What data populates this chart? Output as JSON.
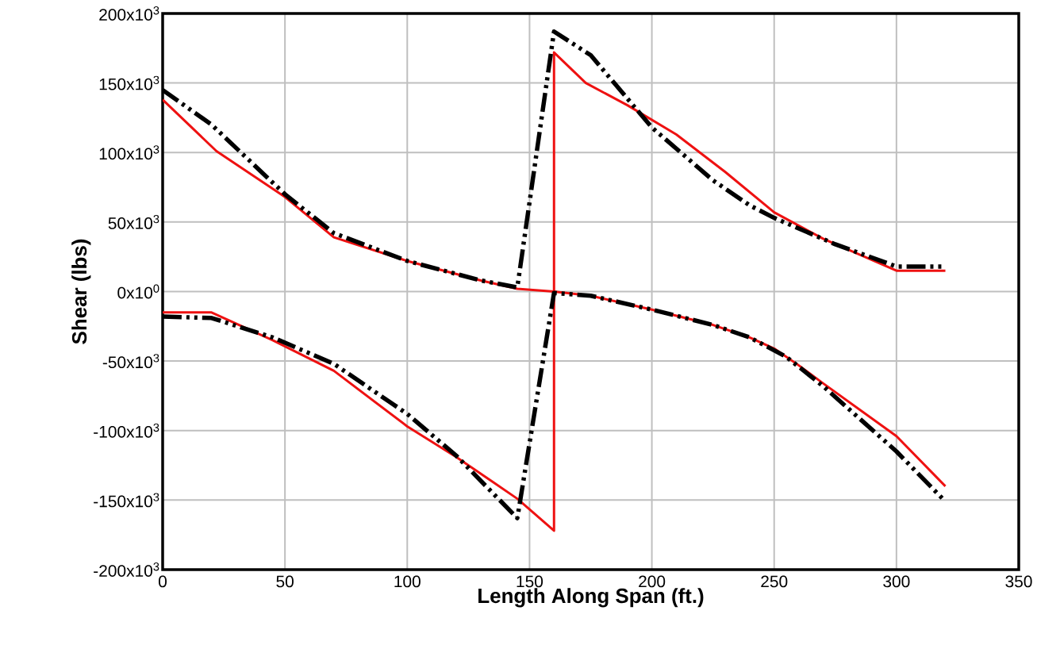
{
  "chart_data": {
    "type": "line",
    "xlabel": "Length Along Span (ft.)",
    "ylabel": "Shear (lbs)",
    "xlim": [
      0,
      350
    ],
    "xticks": [
      0,
      50,
      100,
      150,
      200,
      250,
      300,
      350
    ],
    "ylim": [
      -200000,
      200000
    ],
    "yticks": [
      {
        "value": -200000,
        "label": "-200x10$^{3}$"
      },
      {
        "value": -150000,
        "label": "-150x10$^{3}$"
      },
      {
        "value": -100000,
        "label": "-100x10$^{3}$"
      },
      {
        "value": -50000,
        "label": "-50x10$^{3}$"
      },
      {
        "value": 0,
        "label": "0x10$^{0}$"
      },
      {
        "value": 50000,
        "label": "50x10$^{3}$"
      },
      {
        "value": 100000,
        "label": "100x10$^{3}$"
      },
      {
        "value": 150000,
        "label": "150x10$^{3}$"
      },
      {
        "value": 200000,
        "label": "200x10$^{3}$"
      }
    ],
    "grid": true,
    "series": [
      {
        "color": "#ee1111",
        "line_style": "solid",
        "x": [
          0,
          22,
          50,
          70,
          100,
          130,
          145,
          160,
          175,
          200,
          225,
          240,
          250,
          260,
          270,
          300,
          320
        ],
        "values": [
          138000,
          101000,
          68000,
          39000,
          22000,
          8000,
          2000,
          0,
          -3000,
          -13000,
          -24000,
          -33000,
          -41000,
          -53000,
          -66000,
          -104000,
          -140000
        ]
      },
      {
        "color": "#ee1111",
        "line_style": "solid",
        "x": [
          0,
          20,
          45,
          70,
          100,
          120,
          135,
          145,
          160,
          160,
          173,
          190,
          210,
          230,
          250,
          270,
          300,
          320
        ],
        "values": [
          -15000,
          -15000,
          -35000,
          -57000,
          -97000,
          -119000,
          -137000,
          -149000,
          -172000,
          172000,
          150000,
          134000,
          113000,
          86000,
          57000,
          38000,
          15000,
          15000
        ]
      },
      {
        "color": "#000000",
        "line_style": "dashed",
        "x": [
          0,
          20,
          50,
          70,
          100,
          130,
          145,
          160,
          175,
          200,
          225,
          240,
          250,
          275,
          300,
          305,
          320
        ],
        "values": [
          145000,
          120000,
          70000,
          42000,
          22000,
          8000,
          3000,
          187000,
          170000,
          118000,
          80000,
          62000,
          53000,
          34000,
          18000,
          18000,
          18000
        ]
      },
      {
        "color": "#000000",
        "line_style": "dashed",
        "x": [
          0,
          20,
          45,
          70,
          100,
          120,
          145,
          160,
          175,
          200,
          225,
          240,
          255,
          270,
          300,
          320
        ],
        "values": [
          -18000,
          -19000,
          -33000,
          -52000,
          -88000,
          -118000,
          -163000,
          -1000,
          -3000,
          -13000,
          -24000,
          -33000,
          -47000,
          -68000,
          -115000,
          -151000
        ]
      }
    ]
  }
}
